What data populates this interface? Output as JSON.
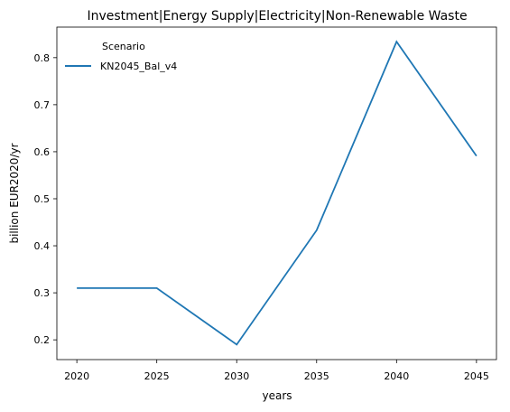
{
  "chart_data": {
    "type": "line",
    "title": "Investment|Energy Supply|Electricity|Non-Renewable Waste",
    "xlabel": "years",
    "ylabel": "billion EUR2020/yr",
    "x": [
      2020,
      2025,
      2030,
      2035,
      2040,
      2045
    ],
    "xticks": [
      "2020",
      "2025",
      "2030",
      "2035",
      "2040",
      "2045"
    ],
    "yticks": [
      "0.2",
      "0.3",
      "0.4",
      "0.5",
      "0.6",
      "0.7",
      "0.8"
    ],
    "xlim": [
      2018.75,
      2046.25
    ],
    "ylim": [
      0.158,
      0.865
    ],
    "legend": {
      "title": "Scenario",
      "placement": "top-left"
    },
    "series": [
      {
        "name": "KN2045_Bal_v4",
        "color": "#1f77b4",
        "values": [
          0.31,
          0.31,
          0.19,
          0.433,
          0.834,
          0.591
        ]
      }
    ],
    "grid": false
  }
}
